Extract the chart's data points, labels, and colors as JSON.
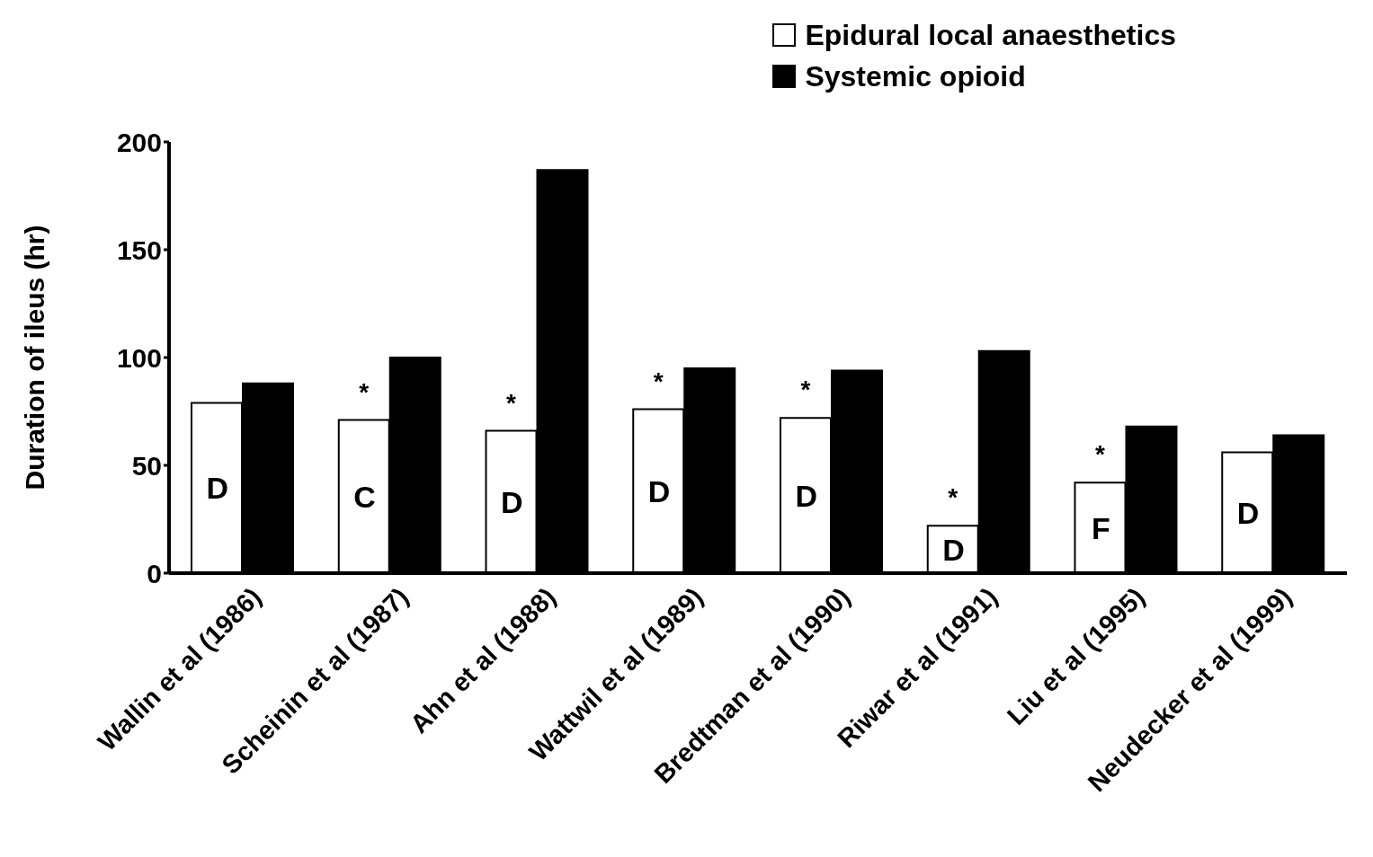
{
  "chart_data": {
    "type": "bar",
    "ylabel": "Duration of ileus (hr)",
    "categories": [
      "Wallin et al (1986)",
      "Scheinin et al (1987)",
      "Ahn et al (1988)",
      "Wattwil et al (1989)",
      "Bredtman et al (1990)",
      "Riwar et al (1991)",
      "Liu et al (1995)",
      "Neudecker et al (1999)"
    ],
    "series": [
      {
        "name": "Epidural local anaesthetics",
        "color": "#ffffff",
        "values": [
          79,
          71,
          66,
          76,
          72,
          22,
          42,
          56
        ],
        "value_labels": [
          null,
          "*",
          "*",
          "*",
          "*",
          "*",
          "*",
          null
        ]
      },
      {
        "name": "Systemic opioid",
        "color": "#000000",
        "values": [
          88,
          100,
          187,
          95,
          94,
          103,
          68,
          64
        ]
      }
    ],
    "ylim": [
      0,
      200
    ],
    "yticks": [
      0,
      50,
      100,
      150,
      200
    ],
    "grid": false,
    "legend": "top right",
    "annotations": [
      "D",
      "C",
      "D",
      "D",
      "D",
      "D",
      "F",
      "D"
    ]
  }
}
